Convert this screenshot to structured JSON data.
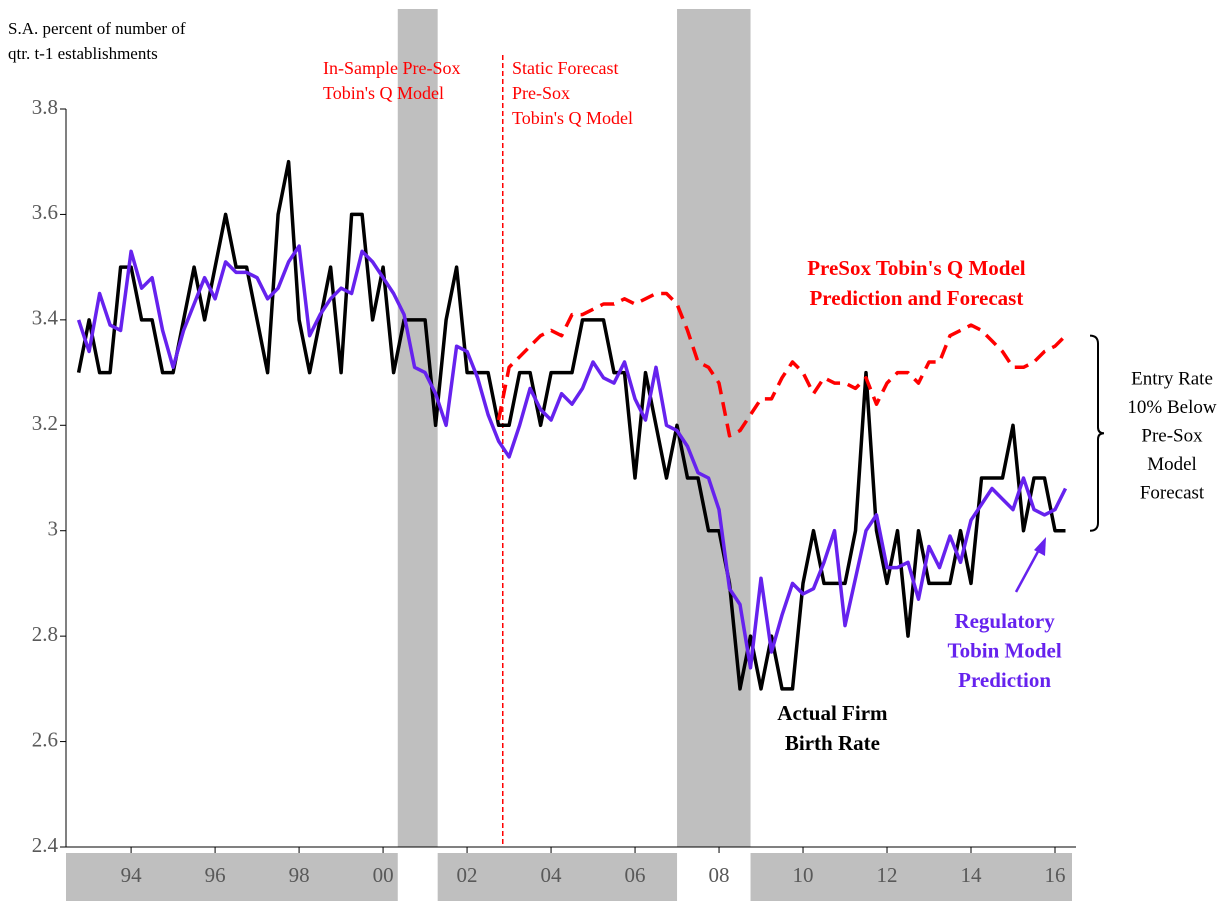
{
  "chart_data": {
    "type": "line",
    "y_axis_label": [
      "S.A. percent of number of",
      "qtr. t-1 establishments"
    ],
    "annotations": [
      {
        "lines": [
          "In-Sample Pre-Sox",
          "Tobin's Q Model"
        ],
        "color": "#ff0000"
      },
      {
        "lines": [
          "Static Forecast",
          "Pre-Sox",
          "Tobin's Q Model"
        ],
        "color": "#ff0000"
      },
      {
        "lines": [
          "Entry Rate",
          "10% Below",
          "Pre-Sox",
          "Model",
          "Forecast"
        ],
        "color": "#000000"
      }
    ],
    "forecast_start": 2003.35,
    "bracket": [
      3.0,
      3.37
    ],
    "shaded_regions": [
      [
        2000.85,
        2001.8
      ],
      [
        2007.5,
        2009.25
      ]
    ],
    "xlim": [
      1992.95,
      2017.0
    ],
    "xticks": [
      {
        "value": 1994.5,
        "label": "94"
      },
      {
        "value": 1996.5,
        "label": "96"
      },
      {
        "value": 1998.5,
        "label": "98"
      },
      {
        "value": 2000.5,
        "label": "00"
      },
      {
        "value": 2002.5,
        "label": "02"
      },
      {
        "value": 2004.5,
        "label": "04"
      },
      {
        "value": 2006.5,
        "label": "06"
      },
      {
        "value": 2008.5,
        "label": "08"
      },
      {
        "value": 2010.5,
        "label": "10"
      },
      {
        "value": 2012.5,
        "label": "12"
      },
      {
        "value": 2014.5,
        "label": "14"
      },
      {
        "value": 2016.5,
        "label": "16"
      }
    ],
    "ylim": [
      2.4,
      3.8
    ],
    "yticks": [
      2.4,
      2.6,
      2.8,
      3,
      3.2,
      3.4,
      3.6,
      3.8
    ],
    "grid": false,
    "x": [
      1993.25,
      1993.5,
      1993.75,
      1994,
      1994.25,
      1994.5,
      1994.75,
      1995,
      1995.25,
      1995.5,
      1995.75,
      1996,
      1996.25,
      1996.5,
      1996.75,
      1997,
      1997.25,
      1997.5,
      1997.75,
      1998,
      1998.25,
      1998.5,
      1998.75,
      1999,
      1999.25,
      1999.5,
      1999.75,
      2000,
      2000.25,
      2000.5,
      2000.75,
      2001,
      2001.25,
      2001.5,
      2001.75,
      2002,
      2002.25,
      2002.5,
      2002.75,
      2003,
      2003.25,
      2003.5,
      2003.75,
      2004,
      2004.25,
      2004.5,
      2004.75,
      2005,
      2005.25,
      2005.5,
      2005.75,
      2006,
      2006.25,
      2006.5,
      2006.75,
      2007,
      2007.25,
      2007.5,
      2007.75,
      2008,
      2008.25,
      2008.5,
      2008.75,
      2009,
      2009.25,
      2009.5,
      2009.75,
      2010,
      2010.25,
      2010.5,
      2010.75,
      2011,
      2011.25,
      2011.5,
      2011.75,
      2012,
      2012.25,
      2012.5,
      2012.75,
      2013,
      2013.25,
      2013.5,
      2013.75,
      2014,
      2014.25,
      2014.5,
      2014.75,
      2015,
      2015.25,
      2015.5,
      2015.75,
      2016,
      2016.25,
      2016.5,
      2016.75
    ],
    "series": [
      {
        "name": [
          "Actual Firm",
          "Birth Rate"
        ],
        "color": "#000000",
        "dash": false,
        "label_at": 2011.2,
        "values": [
          3.3,
          3.4,
          3.3,
          3.3,
          3.5,
          3.5,
          3.4,
          3.4,
          3.3,
          3.3,
          3.4,
          3.5,
          3.4,
          3.5,
          3.6,
          3.5,
          3.5,
          3.4,
          3.3,
          3.6,
          3.7,
          3.4,
          3.3,
          3.4,
          3.5,
          3.3,
          3.6,
          3.6,
          3.4,
          3.5,
          3.3,
          3.4,
          3.4,
          3.4,
          3.2,
          3.4,
          3.5,
          3.3,
          3.3,
          3.3,
          3.2,
          3.2,
          3.3,
          3.3,
          3.2,
          3.3,
          3.3,
          3.3,
          3.4,
          3.4,
          3.4,
          3.3,
          3.3,
          3.1,
          3.3,
          3.2,
          3.1,
          3.2,
          3.1,
          3.1,
          3.0,
          3.0,
          2.9,
          2.7,
          2.8,
          2.7,
          2.8,
          2.7,
          2.7,
          2.9,
          3.0,
          2.9,
          2.9,
          2.9,
          3.0,
          3.3,
          3.0,
          2.9,
          3.0,
          2.8,
          3.0,
          2.9,
          2.9,
          2.9,
          3.0,
          2.9,
          3.1,
          3.1,
          3.1,
          3.2,
          3.0,
          3.1,
          3.1,
          3.0,
          3.0
        ]
      },
      {
        "name": [
          "Regulatory",
          "Tobin Model",
          "Prediction"
        ],
        "color": "#6622ee",
        "dash": false,
        "label_at": 2015.3,
        "values": [
          3.4,
          3.34,
          3.45,
          3.39,
          3.38,
          3.53,
          3.46,
          3.48,
          3.38,
          3.31,
          3.38,
          3.43,
          3.48,
          3.44,
          3.51,
          3.49,
          3.49,
          3.48,
          3.44,
          3.46,
          3.51,
          3.54,
          3.37,
          3.41,
          3.44,
          3.46,
          3.45,
          3.53,
          3.51,
          3.48,
          3.45,
          3.41,
          3.31,
          3.3,
          3.26,
          3.2,
          3.35,
          3.34,
          3.29,
          3.22,
          3.17,
          3.14,
          3.2,
          3.27,
          3.23,
          3.21,
          3.26,
          3.24,
          3.27,
          3.32,
          3.29,
          3.28,
          3.32,
          3.25,
          3.21,
          3.31,
          3.2,
          3.19,
          3.16,
          3.11,
          3.1,
          3.04,
          2.89,
          2.86,
          2.74,
          2.91,
          2.77,
          2.84,
          2.9,
          2.88,
          2.89,
          2.94,
          3.0,
          2.82,
          2.91,
          3.0,
          3.03,
          2.93,
          2.93,
          2.94,
          2.87,
          2.97,
          2.93,
          2.99,
          2.94,
          3.02,
          3.05,
          3.08,
          3.06,
          3.04,
          3.1,
          3.04,
          3.03,
          3.04,
          3.08
        ]
      },
      {
        "name": [
          "PreSox Tobin's Q Model",
          "Prediction and Forecast"
        ],
        "color": "#ff0000",
        "dash": true,
        "label_at": 2013.2,
        "values": [
          null,
          null,
          null,
          null,
          null,
          null,
          null,
          null,
          null,
          null,
          null,
          null,
          null,
          null,
          null,
          null,
          null,
          null,
          null,
          null,
          null,
          null,
          null,
          null,
          null,
          null,
          null,
          null,
          null,
          null,
          null,
          null,
          null,
          null,
          null,
          null,
          null,
          null,
          null,
          null,
          3.21,
          3.31,
          3.33,
          3.35,
          3.37,
          3.38,
          3.37,
          3.41,
          3.41,
          3.42,
          3.43,
          3.43,
          3.44,
          3.43,
          3.44,
          3.45,
          3.45,
          3.43,
          3.38,
          3.32,
          3.31,
          3.28,
          3.18,
          3.19,
          3.22,
          3.25,
          3.25,
          3.29,
          3.32,
          3.3,
          3.26,
          3.29,
          3.28,
          3.28,
          3.27,
          3.29,
          3.24,
          3.28,
          3.3,
          3.3,
          3.28,
          3.32,
          3.32,
          3.37,
          3.38,
          3.39,
          3.38,
          3.36,
          3.34,
          3.31,
          3.31,
          3.32,
          3.34,
          3.35,
          3.37
        ]
      }
    ]
  }
}
